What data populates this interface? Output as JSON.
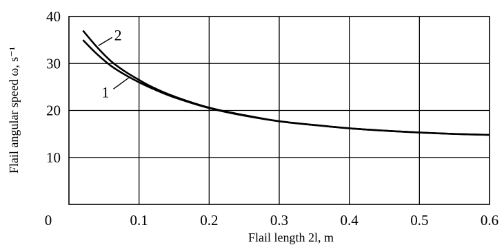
{
  "chart_data": {
    "type": "line",
    "title": "",
    "xlabel": "Flail length 2l, m",
    "ylabel": "Flail angular speed ω, s⁻¹",
    "xlim": [
      0,
      0.6
    ],
    "ylim": [
      0,
      40
    ],
    "x_ticks": [
      "0",
      "0.1",
      "0.2",
      "0.3",
      "0.4",
      "0.5",
      "0.6"
    ],
    "y_ticks": [
      "10",
      "20",
      "30",
      "40"
    ],
    "grid": true,
    "series": [
      {
        "name": "1",
        "x": [
          0.02,
          0.04,
          0.06,
          0.08,
          0.1,
          0.12,
          0.15,
          0.2,
          0.25,
          0.3,
          0.35,
          0.4,
          0.45,
          0.5,
          0.55,
          0.6
        ],
        "y": [
          35.0,
          32.0,
          29.5,
          27.6,
          26.0,
          24.6,
          22.8,
          20.5,
          18.9,
          17.7,
          16.9,
          16.2,
          15.7,
          15.3,
          15.0,
          14.8
        ]
      },
      {
        "name": "2",
        "x": [
          0.02,
          0.04,
          0.06,
          0.08,
          0.1,
          0.12,
          0.15,
          0.2,
          0.25,
          0.3,
          0.35,
          0.4,
          0.45,
          0.5,
          0.55,
          0.6
        ],
        "y": [
          37.0,
          33.5,
          30.5,
          28.3,
          26.5,
          24.9,
          23.0,
          20.6,
          19.0,
          17.7,
          16.9,
          16.2,
          15.7,
          15.3,
          15.0,
          14.8
        ]
      }
    ]
  }
}
